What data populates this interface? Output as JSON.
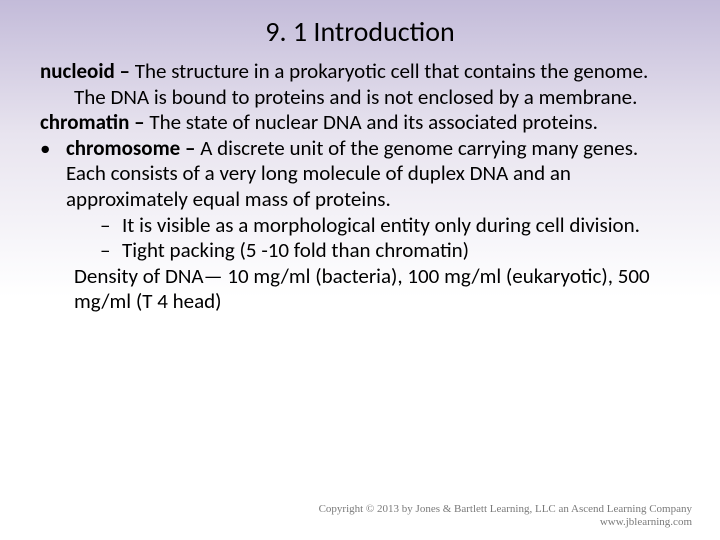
{
  "title": "9. 1  Introduction",
  "defs": {
    "nucleoid_term": "nucleoid –",
    "nucleoid_text": " The structure in a prokaryotic cell that contains the genome.",
    "nucleoid_sub": "The DNA is bound to proteins and is not enclosed by a membrane.",
    "chromatin_term": "chromatin –",
    "chromatin_text": " The state of nuclear DNA and its associated proteins."
  },
  "bullet": {
    "marker": "•",
    "chromosome_term": "chromosome –",
    "chromosome_text": " A discrete unit of the genome carrying many genes. Each consists of a very long molecule of duplex DNA and an approximately equal mass of proteins."
  },
  "dashes": {
    "marker": "–",
    "d1": "It is visible as a morphological entity only during cell division.",
    "d2": "Tight packing (5 -10 fold than chromatin)"
  },
  "density": "Density of DNA— 10 mg/ml (bacteria), 100 mg/ml (eukaryotic), 500 mg/ml (T 4 head)",
  "footer": {
    "line1": "Copyright © 2013 by Jones & Bartlett Learning, LLC an Ascend Learning Company",
    "line2": "www.jblearning.com"
  },
  "colors": {
    "gradient_top": "#c3bbd9",
    "text": "#000000",
    "footer_text": "#7a7a7a"
  },
  "typography": {
    "title_fontsize": 28,
    "body_fontsize": 21,
    "footer_fontsize": 11
  }
}
